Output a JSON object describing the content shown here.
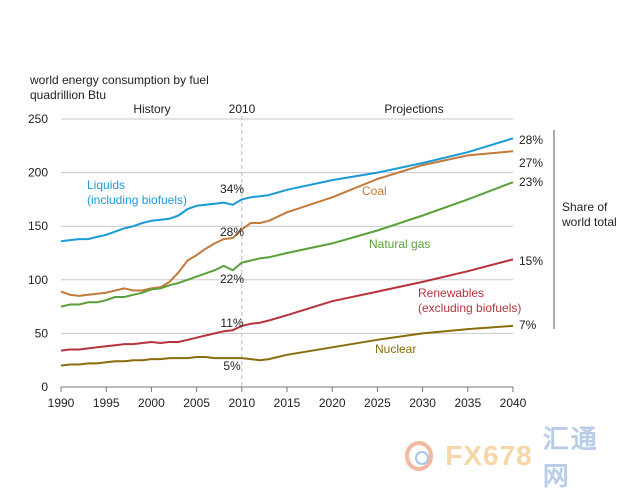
{
  "chart_data": {
    "type": "line",
    "title": "world energy consumption by fuel",
    "ylabel": "quadrillion Btu",
    "xlabel": "",
    "xlim": [
      1990,
      2040
    ],
    "ylim": [
      0,
      250
    ],
    "grid": true,
    "y_ticks": [
      0,
      50,
      100,
      150,
      200,
      250
    ],
    "x_ticks": [
      1990,
      1995,
      2000,
      2005,
      2010,
      2015,
      2020,
      2025,
      2030,
      2035,
      2040
    ],
    "divider_year": 2010,
    "section_labels": {
      "history": "History",
      "divider": "2010",
      "projections": "Projections"
    },
    "share_label": "Share of world total",
    "series": [
      {
        "name": "Liquids (including biofuels)",
        "label_lines": [
          "Liquids",
          "(including biofuels)"
        ],
        "color": "#1a9ad6",
        "share_2010": "34%",
        "share_2040": "28%",
        "points": [
          [
            1990,
            136
          ],
          [
            1991,
            137
          ],
          [
            1992,
            138
          ],
          [
            1993,
            138
          ],
          [
            1994,
            140
          ],
          [
            1995,
            142
          ],
          [
            1996,
            145
          ],
          [
            1997,
            148
          ],
          [
            1998,
            150
          ],
          [
            1999,
            153
          ],
          [
            2000,
            155
          ],
          [
            2001,
            156
          ],
          [
            2002,
            157
          ],
          [
            2003,
            160
          ],
          [
            2004,
            166
          ],
          [
            2005,
            169
          ],
          [
            2006,
            170
          ],
          [
            2007,
            171
          ],
          [
            2008,
            172
          ],
          [
            2009,
            170
          ],
          [
            2010,
            175
          ],
          [
            2011,
            177
          ],
          [
            2012,
            178
          ],
          [
            2013,
            179
          ],
          [
            2015,
            184
          ],
          [
            2020,
            193
          ],
          [
            2025,
            200
          ],
          [
            2030,
            209
          ],
          [
            2035,
            219
          ],
          [
            2040,
            232
          ]
        ]
      },
      {
        "name": "Coal",
        "label_lines": [
          "Coal"
        ],
        "color": "#c27a3a",
        "share_2010": "28%",
        "share_2040": "27%",
        "points": [
          [
            1990,
            89
          ],
          [
            1991,
            86
          ],
          [
            1992,
            85
          ],
          [
            1993,
            86
          ],
          [
            1994,
            87
          ],
          [
            1995,
            88
          ],
          [
            1996,
            90
          ],
          [
            1997,
            92
          ],
          [
            1998,
            90
          ],
          [
            1999,
            90
          ],
          [
            2000,
            92
          ],
          [
            2001,
            93
          ],
          [
            2002,
            98
          ],
          [
            2003,
            107
          ],
          [
            2004,
            118
          ],
          [
            2005,
            123
          ],
          [
            2006,
            129
          ],
          [
            2007,
            134
          ],
          [
            2008,
            138
          ],
          [
            2009,
            139
          ],
          [
            2010,
            147
          ],
          [
            2011,
            153
          ],
          [
            2012,
            153
          ],
          [
            2013,
            155
          ],
          [
            2015,
            163
          ],
          [
            2020,
            177
          ],
          [
            2025,
            194
          ],
          [
            2030,
            207
          ],
          [
            2035,
            216
          ],
          [
            2040,
            220
          ]
        ]
      },
      {
        "name": "Natural gas",
        "label_lines": [
          "Natural gas"
        ],
        "color": "#5aa03a",
        "share_2010": "22%",
        "share_2040": "23%",
        "points": [
          [
            1990,
            75
          ],
          [
            1991,
            77
          ],
          [
            1992,
            77
          ],
          [
            1993,
            79
          ],
          [
            1994,
            79
          ],
          [
            1995,
            81
          ],
          [
            1996,
            84
          ],
          [
            1997,
            84
          ],
          [
            1998,
            86
          ],
          [
            1999,
            88
          ],
          [
            2000,
            91
          ],
          [
            2001,
            92
          ],
          [
            2002,
            95
          ],
          [
            2003,
            97
          ],
          [
            2004,
            100
          ],
          [
            2005,
            103
          ],
          [
            2006,
            106
          ],
          [
            2007,
            109
          ],
          [
            2008,
            113
          ],
          [
            2009,
            109
          ],
          [
            2010,
            116
          ],
          [
            2011,
            118
          ],
          [
            2012,
            120
          ],
          [
            2013,
            121
          ],
          [
            2015,
            125
          ],
          [
            2020,
            134
          ],
          [
            2025,
            146
          ],
          [
            2030,
            160
          ],
          [
            2035,
            175
          ],
          [
            2040,
            191
          ]
        ]
      },
      {
        "name": "Renewables (excluding biofuels)",
        "label_lines": [
          "Renewables",
          "(excluding biofuels)"
        ],
        "color": "#b8323c",
        "share_2010": "11%",
        "share_2040": "15%",
        "points": [
          [
            1990,
            34
          ],
          [
            1991,
            35
          ],
          [
            1992,
            35
          ],
          [
            1993,
            36
          ],
          [
            1994,
            37
          ],
          [
            1995,
            38
          ],
          [
            1996,
            39
          ],
          [
            1997,
            40
          ],
          [
            1998,
            40
          ],
          [
            1999,
            41
          ],
          [
            2000,
            42
          ],
          [
            2001,
            41
          ],
          [
            2002,
            42
          ],
          [
            2003,
            42
          ],
          [
            2004,
            44
          ],
          [
            2005,
            46
          ],
          [
            2006,
            48
          ],
          [
            2007,
            50
          ],
          [
            2008,
            52
          ],
          [
            2009,
            53
          ],
          [
            2010,
            57
          ],
          [
            2011,
            59
          ],
          [
            2012,
            60
          ],
          [
            2013,
            62
          ],
          [
            2015,
            67
          ],
          [
            2020,
            80
          ],
          [
            2025,
            89
          ],
          [
            2030,
            98
          ],
          [
            2035,
            108
          ],
          [
            2040,
            119
          ]
        ]
      },
      {
        "name": "Nuclear",
        "label_lines": [
          "Nuclear"
        ],
        "color": "#8a6d0b",
        "share_2010": "5%",
        "share_2040": "7%",
        "points": [
          [
            1990,
            20
          ],
          [
            1991,
            21
          ],
          [
            1992,
            21
          ],
          [
            1993,
            22
          ],
          [
            1994,
            22
          ],
          [
            1995,
            23
          ],
          [
            1996,
            24
          ],
          [
            1997,
            24
          ],
          [
            1998,
            25
          ],
          [
            1999,
            25
          ],
          [
            2000,
            26
          ],
          [
            2001,
            26
          ],
          [
            2002,
            27
          ],
          [
            2003,
            27
          ],
          [
            2004,
            27
          ],
          [
            2005,
            28
          ],
          [
            2006,
            28
          ],
          [
            2007,
            27
          ],
          [
            2008,
            27
          ],
          [
            2009,
            27
          ],
          [
            2010,
            27
          ],
          [
            2011,
            26
          ],
          [
            2012,
            25
          ],
          [
            2013,
            26
          ],
          [
            2015,
            30
          ],
          [
            2020,
            37
          ],
          [
            2025,
            44
          ],
          [
            2030,
            50
          ],
          [
            2035,
            54
          ],
          [
            2040,
            57
          ]
        ]
      }
    ]
  },
  "watermark": {
    "brand": "FX678",
    "cn": "汇通网"
  }
}
